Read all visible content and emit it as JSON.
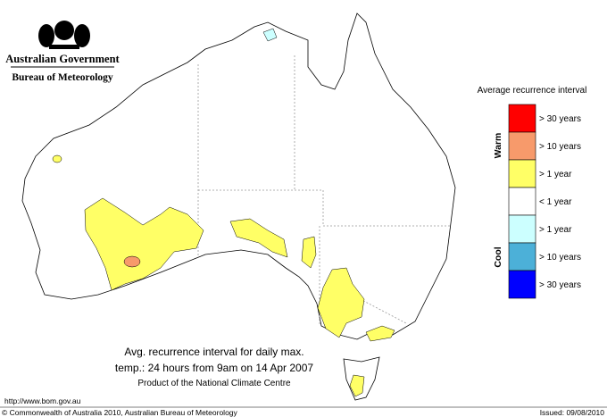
{
  "header": {
    "line1": "Australian Government",
    "line2": "Bureau of Meteorology"
  },
  "legend": {
    "title": "Average recurrence interval",
    "warm": "Warm",
    "cool": "Cool",
    "items": [
      {
        "label": "> 30 years",
        "color": "#ff0000"
      },
      {
        "label": "> 10 years",
        "color": "#f79a6b"
      },
      {
        "label": "> 1 year",
        "color": "#ffff66"
      },
      {
        "label": "< 1 year",
        "color": "#ffffff"
      },
      {
        "label": "> 1 year",
        "color": "#ccffff"
      },
      {
        "label": "> 10 years",
        "color": "#4cb0d8"
      },
      {
        "label": "> 30 years",
        "color": "#0000ff"
      }
    ]
  },
  "caption": {
    "line1": "Avg. recurrence interval for daily max.",
    "line2": "temp.: 24 hours from 9am on 14 Apr 2007",
    "line3": "Product of the National Climate Centre"
  },
  "footer": {
    "url": "http://www.bom.gov.au",
    "copyright": "© Commonwealth of Australia 2010, Australian Bureau of Meteorology",
    "issued": "Issued: 09/08/2010"
  }
}
